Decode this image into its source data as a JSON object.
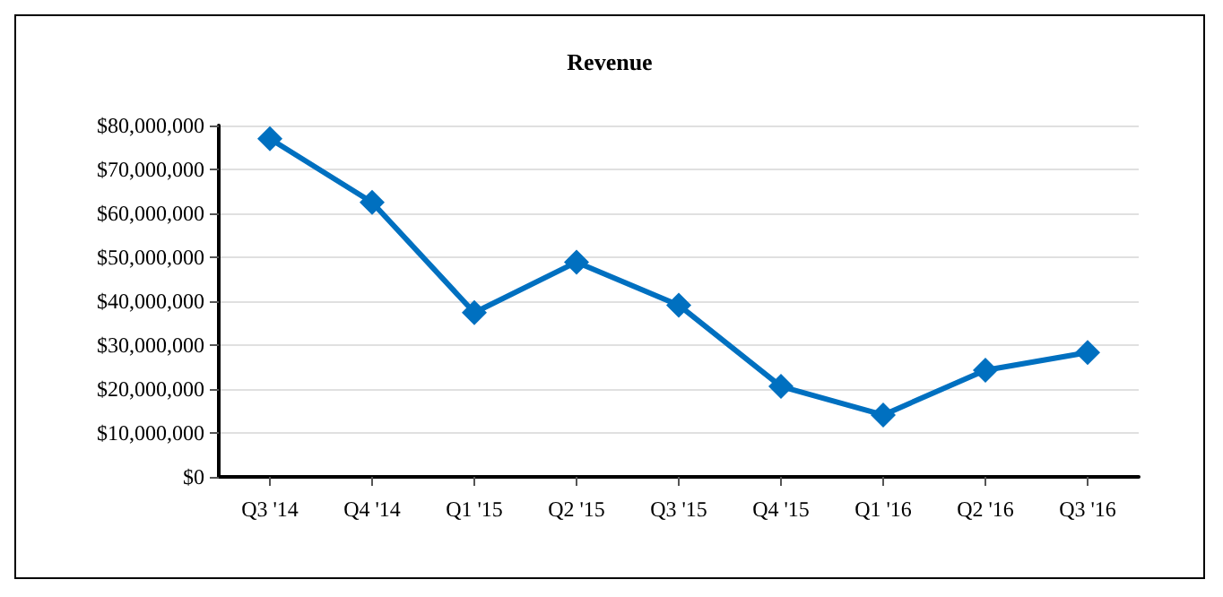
{
  "chart_data": {
    "type": "line",
    "title": "Revenue",
    "categories": [
      "Q3 '14",
      "Q4 '14",
      "Q1 '15",
      "Q2 '15",
      "Q3 '15",
      "Q4 '15",
      "Q1 '16",
      "Q2 '16",
      "Q3 '16"
    ],
    "series": [
      {
        "color": "#0070c0",
        "values": [
          77000000,
          62500000,
          37400000,
          48900000,
          39100000,
          20600000,
          14100000,
          24300000,
          28300000
        ]
      }
    ],
    "ylim": [
      0,
      80000000
    ],
    "yticks": [
      {
        "value": 0,
        "label": "$0"
      },
      {
        "value": 10000000,
        "label": "$10,000,000"
      },
      {
        "value": 20000000,
        "label": "$20,000,000"
      },
      {
        "value": 30000000,
        "label": "$30,000,000"
      },
      {
        "value": 40000000,
        "label": "$40,000,000"
      },
      {
        "value": 50000000,
        "label": "$50,000,000"
      },
      {
        "value": 60000000,
        "label": "$60,000,000"
      },
      {
        "value": 70000000,
        "label": "$70,000,000"
      },
      {
        "value": 80000000,
        "label": "$80,000,000"
      }
    ],
    "grid": "y",
    "marker": "diamond",
    "line_style": "solid"
  }
}
